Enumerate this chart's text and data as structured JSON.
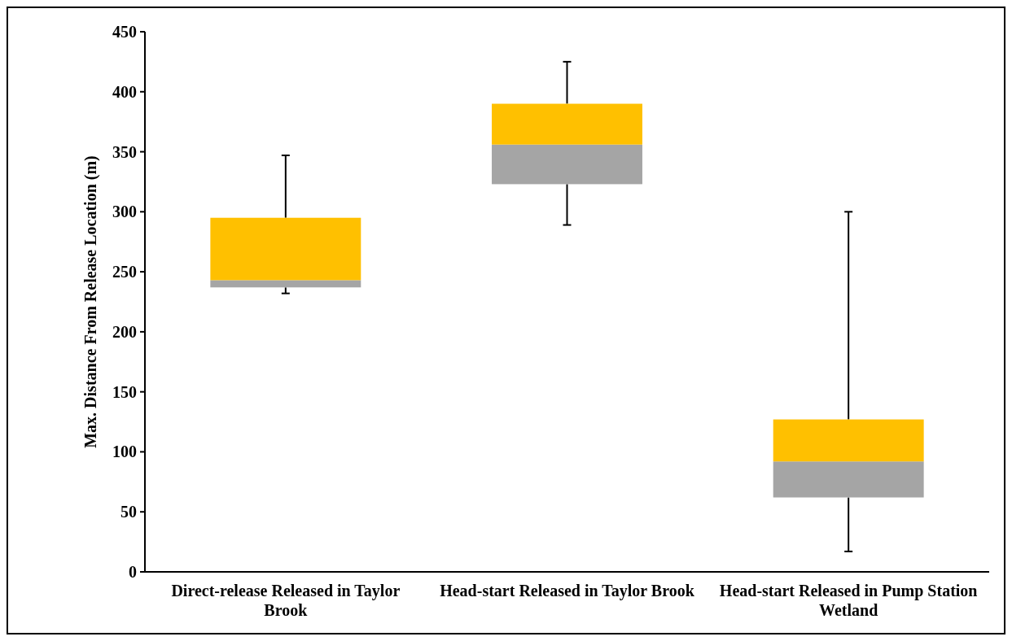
{
  "chart_data": {
    "type": "box",
    "ylabel": "Max. Distance From Release Location (m)",
    "categories": [
      "Direct-release Released in Taylor Brook",
      "Head-start Released in Taylor Brook",
      "Head-start Released in Pump Station Wetland"
    ],
    "series": [
      {
        "color": "#ffc000",
        "colors": [
          "#a5a5a5",
          "#a5a5a5",
          "#a5a5a5"
        ],
        "boxes": [
          {
            "low": 232,
            "q1": 237,
            "median": 243,
            "q3": 295,
            "high": 347
          },
          {
            "low": 289,
            "q1": 323,
            "median": 356,
            "q3": 390,
            "high": 425
          },
          {
            "low": 17,
            "q1": 62,
            "median": 92,
            "q3": 127,
            "high": 300
          }
        ]
      }
    ],
    "ylim": [
      0,
      450
    ],
    "yticks": [
      0,
      50,
      100,
      150,
      200,
      250,
      300,
      350,
      400,
      450
    ],
    "grid": false
  }
}
